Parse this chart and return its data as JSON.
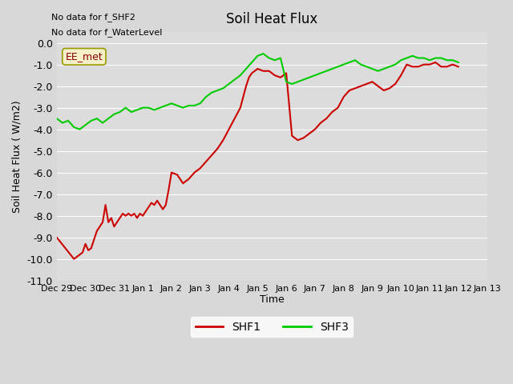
{
  "title": "Soil Heat Flux",
  "ylabel": "Soil Heat Flux ( W/m2)",
  "xlabel": "Time",
  "no_data_text": [
    "No data for f_SHF2",
    "No data for f_WaterLevel"
  ],
  "ee_met_label": "EE_met",
  "ylim": [
    -11.0,
    0.5
  ],
  "yticks": [
    0.0,
    -1.0,
    -2.0,
    -3.0,
    -4.0,
    -5.0,
    -6.0,
    -7.0,
    -8.0,
    -9.0,
    -10.0,
    -11.0
  ],
  "bg_color": "#d8d8d8",
  "plot_bg_color": "#dcdcdc",
  "shf1_color": "#cc0000",
  "shf3_color": "#00cc00",
  "legend_shf1": "SHF1",
  "legend_shf3": "SHF3",
  "xtick_positions": [
    0,
    1,
    2,
    3,
    4,
    5,
    6,
    7,
    8,
    9,
    10,
    11,
    12,
    13,
    14,
    15
  ],
  "xtick_labels": [
    "Dec 29",
    "Dec 30",
    "Dec 31",
    "Jan 1",
    "Jan 2",
    "Jan 3",
    "Jan 4",
    "Jan 5",
    "Jan 6",
    "Jan 7",
    "Jan 8",
    "Jan 9",
    "Jan 10",
    "Jan 11",
    "Jan 12",
    "Jan 13"
  ],
  "shf1_x": [
    0,
    0.3,
    0.6,
    0.9,
    1.0,
    1.1,
    1.2,
    1.3,
    1.4,
    1.5,
    1.6,
    1.7,
    1.8,
    1.9,
    2.0,
    2.1,
    2.2,
    2.3,
    2.4,
    2.5,
    2.6,
    2.7,
    2.8,
    2.9,
    3.0,
    3.1,
    3.2,
    3.3,
    3.4,
    3.5,
    3.6,
    3.7,
    3.8,
    3.9,
    4.0,
    4.2,
    4.4,
    4.6,
    4.8,
    5.0,
    5.2,
    5.4,
    5.6,
    5.8,
    6.0,
    6.2,
    6.4,
    6.5,
    6.6,
    6.7,
    6.8,
    6.9,
    7.0,
    7.2,
    7.4,
    7.6,
    7.8,
    8.0,
    8.2,
    8.4,
    8.6,
    8.8,
    9.0,
    9.2,
    9.4,
    9.6,
    9.8,
    10.0,
    10.2,
    10.4,
    10.6,
    10.8,
    11.0,
    11.2,
    11.4,
    11.6,
    11.8,
    12.0,
    12.2,
    12.4,
    12.6,
    12.8,
    13.0,
    13.2,
    13.4,
    13.6,
    13.8,
    14.0
  ],
  "shf1_y": [
    -9.0,
    -9.5,
    -10.0,
    -9.7,
    -9.3,
    -9.6,
    -9.5,
    -9.1,
    -8.7,
    -8.5,
    -8.3,
    -7.5,
    -8.3,
    -8.1,
    -8.5,
    -8.3,
    -8.1,
    -7.9,
    -8.0,
    -7.9,
    -8.0,
    -7.9,
    -8.1,
    -7.9,
    -8.0,
    -7.8,
    -7.6,
    -7.4,
    -7.5,
    -7.3,
    -7.5,
    -7.7,
    -7.5,
    -6.8,
    -6.0,
    -6.1,
    -6.5,
    -6.3,
    -6.0,
    -5.8,
    -5.5,
    -5.2,
    -4.9,
    -4.5,
    -4.0,
    -3.5,
    -3.0,
    -2.5,
    -2.0,
    -1.6,
    -1.4,
    -1.3,
    -1.2,
    -1.3,
    -1.3,
    -1.5,
    -1.6,
    -1.4,
    -4.3,
    -4.5,
    -4.4,
    -4.2,
    -4.0,
    -3.7,
    -3.5,
    -3.2,
    -3.0,
    -2.5,
    -2.2,
    -2.1,
    -2.0,
    -1.9,
    -1.8,
    -2.0,
    -2.2,
    -2.1,
    -1.9,
    -1.5,
    -1.0,
    -1.1,
    -1.1,
    -1.0,
    -1.0,
    -0.9,
    -1.1,
    -1.1,
    -1.0,
    -1.1
  ],
  "shf3_x": [
    0,
    0.2,
    0.4,
    0.6,
    0.8,
    1.0,
    1.2,
    1.4,
    1.6,
    1.8,
    2.0,
    2.2,
    2.4,
    2.6,
    2.8,
    3.0,
    3.2,
    3.4,
    3.6,
    3.8,
    4.0,
    4.2,
    4.4,
    4.6,
    4.8,
    5.0,
    5.2,
    5.4,
    5.6,
    5.8,
    6.0,
    6.2,
    6.4,
    6.6,
    6.8,
    7.0,
    7.2,
    7.4,
    7.6,
    7.8,
    8.0,
    8.2,
    8.4,
    8.6,
    8.8,
    9.0,
    9.2,
    9.4,
    9.6,
    9.8,
    10.0,
    10.2,
    10.4,
    10.6,
    10.8,
    11.0,
    11.2,
    11.4,
    11.6,
    11.8,
    12.0,
    12.2,
    12.4,
    12.6,
    12.8,
    13.0,
    13.2,
    13.4,
    13.6,
    13.8,
    14.0
  ],
  "shf3_y": [
    -3.5,
    -3.7,
    -3.6,
    -3.9,
    -4.0,
    -3.8,
    -3.6,
    -3.5,
    -3.7,
    -3.5,
    -3.3,
    -3.2,
    -3.0,
    -3.2,
    -3.1,
    -3.0,
    -3.0,
    -3.1,
    -3.0,
    -2.9,
    -2.8,
    -2.9,
    -3.0,
    -2.9,
    -2.9,
    -2.8,
    -2.5,
    -2.3,
    -2.2,
    -2.1,
    -1.9,
    -1.7,
    -1.5,
    -1.2,
    -0.9,
    -0.6,
    -0.5,
    -0.7,
    -0.8,
    -0.7,
    -1.8,
    -1.9,
    -1.8,
    -1.7,
    -1.6,
    -1.5,
    -1.4,
    -1.3,
    -1.2,
    -1.1,
    -1.0,
    -0.9,
    -0.8,
    -1.0,
    -1.1,
    -1.2,
    -1.3,
    -1.2,
    -1.1,
    -1.0,
    -0.8,
    -0.7,
    -0.6,
    -0.7,
    -0.7,
    -0.8,
    -0.7,
    -0.7,
    -0.8,
    -0.8,
    -0.9
  ]
}
